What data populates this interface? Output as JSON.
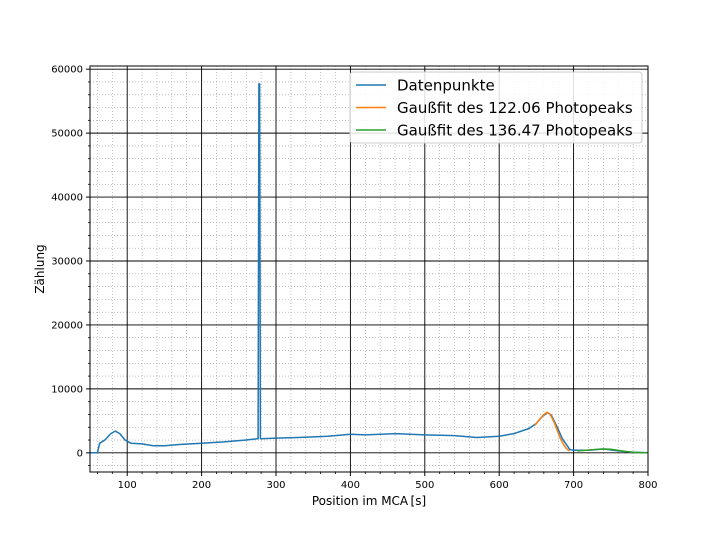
{
  "chart_data": {
    "type": "line",
    "title": "",
    "xlabel": "Position im MCA [s]",
    "ylabel": "Zählung",
    "xlim": [
      50,
      800
    ],
    "ylim": [
      -3000,
      60500
    ],
    "x_ticks": [
      100,
      200,
      300,
      400,
      500,
      600,
      700,
      800
    ],
    "y_ticks": [
      0,
      10000,
      20000,
      30000,
      40000,
      50000,
      60000
    ],
    "grid": {
      "major": true,
      "minor": true
    },
    "legend_position": "top-right",
    "series": [
      {
        "name": "Datenpunkte",
        "color": "#1f77b4",
        "points": [
          [
            50,
            0
          ],
          [
            60,
            0
          ],
          [
            63,
            1500
          ],
          [
            70,
            2000
          ],
          [
            78,
            3000
          ],
          [
            84,
            3400
          ],
          [
            90,
            3000
          ],
          [
            97,
            2000
          ],
          [
            105,
            1500
          ],
          [
            120,
            1400
          ],
          [
            135,
            1100
          ],
          [
            150,
            1100
          ],
          [
            170,
            1300
          ],
          [
            200,
            1500
          ],
          [
            230,
            1700
          ],
          [
            260,
            2000
          ],
          [
            275,
            2200
          ],
          [
            276,
            2200
          ],
          [
            277,
            57700
          ],
          [
            278,
            57700
          ],
          [
            279,
            2200
          ],
          [
            300,
            2300
          ],
          [
            330,
            2400
          ],
          [
            370,
            2600
          ],
          [
            400,
            2900
          ],
          [
            420,
            2800
          ],
          [
            440,
            2900
          ],
          [
            460,
            3000
          ],
          [
            480,
            2900
          ],
          [
            500,
            2800
          ],
          [
            540,
            2700
          ],
          [
            570,
            2400
          ],
          [
            600,
            2600
          ],
          [
            620,
            3000
          ],
          [
            640,
            3800
          ],
          [
            650,
            4600
          ],
          [
            658,
            5700
          ],
          [
            665,
            6300
          ],
          [
            670,
            5900
          ],
          [
            678,
            4000
          ],
          [
            685,
            2200
          ],
          [
            695,
            500
          ],
          [
            700,
            400
          ],
          [
            720,
            400
          ],
          [
            740,
            600
          ],
          [
            760,
            300
          ],
          [
            780,
            100
          ],
          [
            800,
            0
          ]
        ]
      },
      {
        "name": "Gaußfit des 122.06 Photopeaks",
        "color": "#ff7f0e",
        "points": [
          [
            648,
            4300
          ],
          [
            652,
            4900
          ],
          [
            656,
            5500
          ],
          [
            660,
            6000
          ],
          [
            664,
            6300
          ],
          [
            667,
            6200
          ],
          [
            670,
            5700
          ],
          [
            674,
            4700
          ],
          [
            678,
            3500
          ],
          [
            682,
            2300
          ],
          [
            686,
            1400
          ],
          [
            690,
            700
          ],
          [
            694,
            300
          ]
        ]
      },
      {
        "name": "Gaußfit des 136.47 Photopeaks",
        "color": "#2ca02c",
        "points": [
          [
            705,
            300
          ],
          [
            715,
            380
          ],
          [
            725,
            480
          ],
          [
            735,
            580
          ],
          [
            742,
            600
          ],
          [
            750,
            550
          ],
          [
            758,
            420
          ],
          [
            766,
            280
          ],
          [
            774,
            150
          ],
          [
            782,
            60
          ],
          [
            790,
            20
          ],
          [
            800,
            0
          ]
        ]
      }
    ]
  }
}
